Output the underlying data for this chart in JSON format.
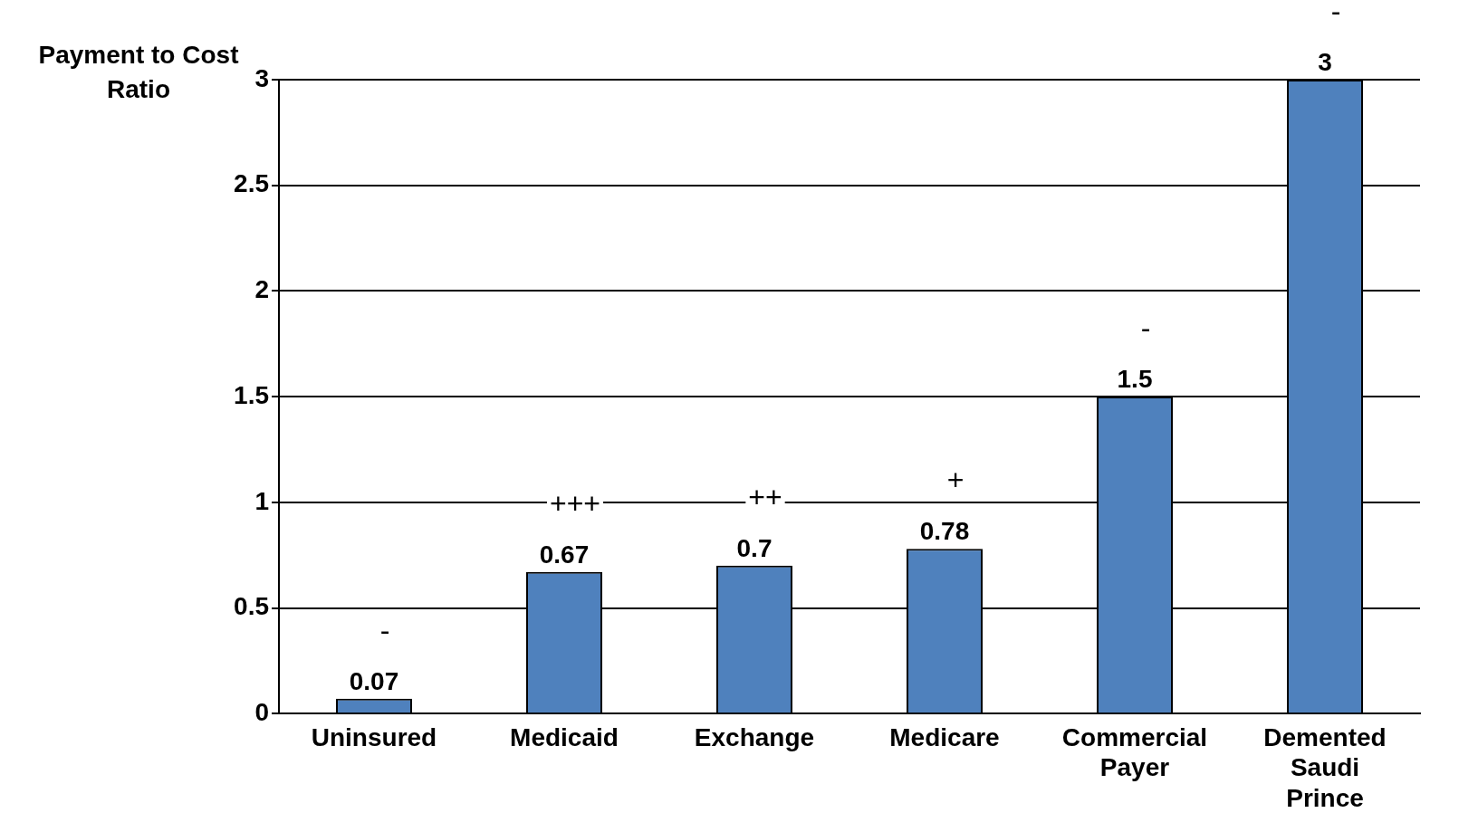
{
  "chart_data": {
    "type": "bar",
    "ylabel": "Payment to Cost Ratio",
    "categories": [
      "Uninsured",
      "Medicaid",
      "Exchange",
      "Medicare",
      "Commercial Payer",
      "Demented Saudi Prince"
    ],
    "values": [
      0.07,
      0.67,
      0.7,
      0.78,
      1.5,
      3
    ],
    "color": "#4f81bd",
    "ylim": [
      0,
      3
    ],
    "yticks": [
      0,
      0.5,
      1,
      1.5,
      2,
      2.5,
      3
    ],
    "grid": "y",
    "legend": false,
    "data_labels": true,
    "annotations": [
      "-",
      "+++",
      "++",
      "+",
      "-",
      "-"
    ]
  }
}
